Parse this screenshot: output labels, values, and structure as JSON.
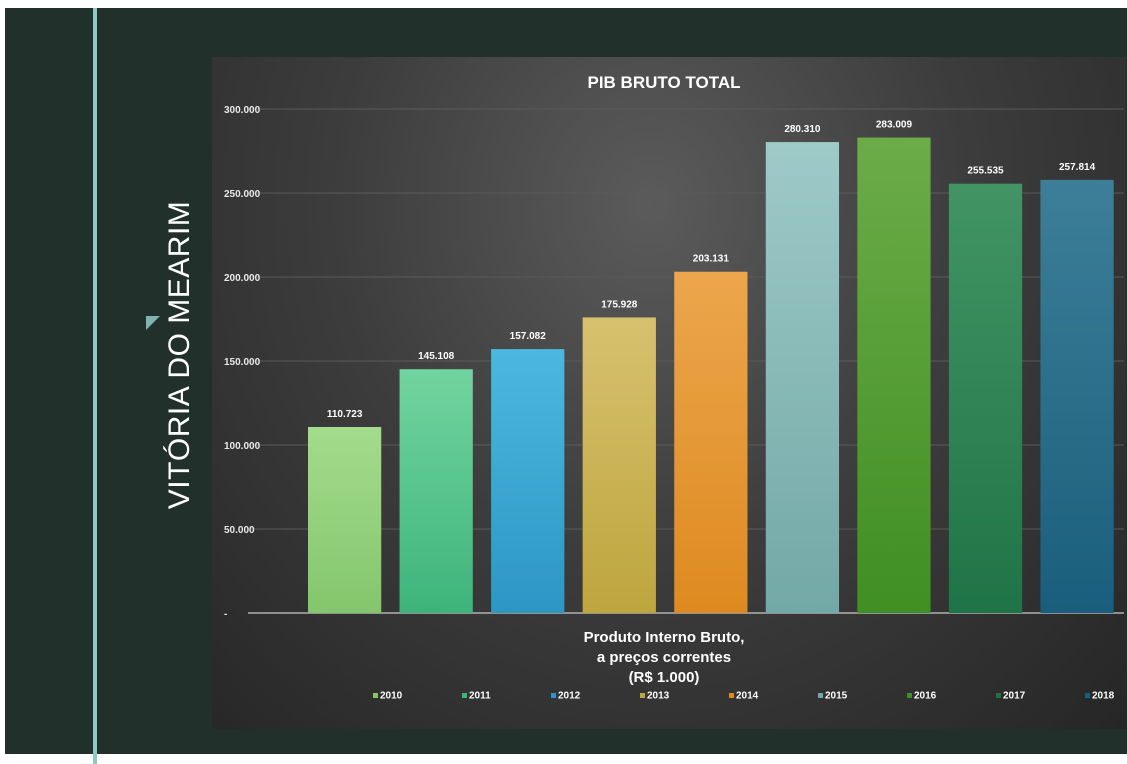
{
  "slide": {
    "side_title": "VITÓRIA DO MEARIM",
    "accent_color": "#8fc9c3",
    "background_color": "#21302b"
  },
  "chart_data": {
    "type": "bar",
    "title": "PIB BRUTO TOTAL",
    "xlabel_lines": [
      "Produto Interno Bruto,",
      "a preços correntes",
      "(R$ 1.000)"
    ],
    "ylabel": "",
    "ylim": [
      0,
      300000
    ],
    "yticks": [
      0,
      50000,
      100000,
      150000,
      200000,
      250000,
      300000
    ],
    "ytick_labels": [
      "-",
      "50.000",
      "100.000",
      "150.000",
      "200.000",
      "250.000",
      "300.000"
    ],
    "grid": true,
    "legend_position": "bottom",
    "categories": [
      "2010",
      "2011",
      "2012",
      "2013",
      "2014",
      "2015",
      "2016",
      "2017",
      "2018"
    ],
    "values": [
      110723,
      145108,
      157082,
      175928,
      203131,
      280310,
      283009,
      255535,
      257814
    ],
    "value_labels": [
      "110.723",
      "145.108",
      "157.082",
      "175.928",
      "203.131",
      "280.310",
      "283.009",
      "255.535",
      "257.814"
    ],
    "colors": [
      [
        "#a3dc8c",
        "#84c66c"
      ],
      [
        "#72d4a0",
        "#3db47b"
      ],
      [
        "#4cb8e0",
        "#2d96c4"
      ],
      [
        "#d7c16e",
        "#bea53e"
      ],
      [
        "#eca64c",
        "#de8a20"
      ],
      [
        "#9ecac8",
        "#72a8a6"
      ],
      [
        "#6cac48",
        "#3f8f22"
      ],
      [
        "#429464",
        "#1f7447"
      ],
      [
        "#3d7f98",
        "#195e7c"
      ]
    ]
  }
}
